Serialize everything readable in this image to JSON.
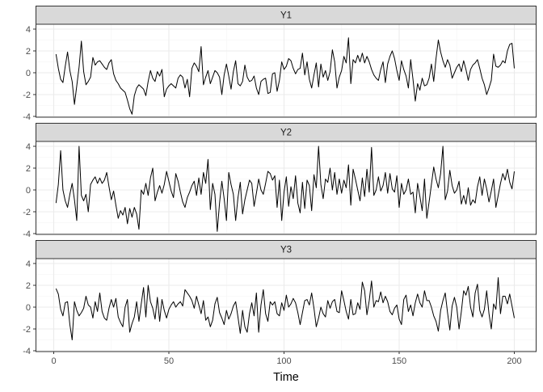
{
  "chart_data": {
    "type": "line",
    "facet_layout": "stacked vertically, shared x axis",
    "xlabel": "Time",
    "ylabel": "",
    "xlim": [
      1,
      200
    ],
    "ylim": [
      -4,
      4
    ],
    "x_ticks": [
      "0",
      "50",
      "100",
      "150",
      "200"
    ],
    "y_ticks": [
      "-4",
      "-2",
      "0",
      "2",
      "4"
    ],
    "grid": true,
    "line_color": "#000000",
    "strip_fill": "#d9d9d9",
    "x_start": 1,
    "series": [
      {
        "name": "Y1",
        "values": [
          1.7,
          0.4,
          -0.6,
          -0.9,
          0.6,
          1.9,
          0.2,
          -0.8,
          -2.9,
          -1.2,
          0.5,
          2.9,
          0.1,
          -1.1,
          -0.8,
          -0.4,
          1.4,
          0.7,
          1.0,
          1.1,
          0.8,
          0.5,
          0.3,
          0.9,
          1.2,
          -0.1,
          -0.7,
          -1.0,
          -1.4,
          -1.6,
          -1.8,
          -2.5,
          -3.3,
          -3.8,
          -2.1,
          -1.4,
          -1.1,
          -1.3,
          -1.5,
          -2.1,
          -0.8,
          0.2,
          -0.5,
          -0.8,
          0.1,
          -0.3,
          0.3,
          -2.2,
          -1.5,
          -1.2,
          -1.0,
          -1.2,
          -1.4,
          -0.5,
          -0.2,
          -0.4,
          -1.4,
          -0.6,
          -2.2,
          0.4,
          0.9,
          0.6,
          0.1,
          2.4,
          -1.1,
          -0.4,
          0.2,
          -1.0,
          -0.4,
          0.2,
          0.0,
          -0.4,
          -2.0,
          -0.2,
          0.8,
          -0.3,
          -1.5,
          0.1,
          1.1,
          -1.0,
          -1.2,
          -0.8,
          0.7,
          -0.4,
          -0.8,
          -0.7,
          -0.3,
          -1.4,
          -2.0,
          -0.8,
          -0.6,
          -0.5,
          -1.9,
          -1.8,
          -0.1,
          0.0,
          -1.7,
          -0.7,
          1.0,
          0.3,
          0.6,
          1.3,
          1.1,
          0.4,
          -0.1,
          0.3,
          0.4,
          1.8,
          -0.2,
          1.0,
          -0.6,
          -1.4,
          -0.2,
          0.9,
          -1.3,
          0.8,
          -0.4,
          0.2,
          -0.7,
          0.1,
          2.1,
          1.0,
          -1.4,
          -0.4,
          0.2,
          1.5,
          0.9,
          3.2,
          -1.0,
          1.2,
          0.9,
          1.6,
          1.0,
          1.8,
          0.9,
          1.5,
          1.0,
          0.3,
          -0.2,
          -0.5,
          -0.7,
          0.3,
          1.0,
          -0.9,
          0.8,
          1.5,
          2.0,
          1.3,
          0.2,
          -0.7,
          1.1,
          0.3,
          -0.3,
          -1.4,
          1.2,
          -0.6,
          -2.6,
          -1.0,
          -1.6,
          -0.5,
          -1.2,
          -1.1,
          -0.5,
          0.8,
          -0.8,
          1.3,
          3.0,
          1.9,
          1.1,
          0.5,
          1.2,
          0.7,
          -0.5,
          0.0,
          0.5,
          0.8,
          0.1,
          1.1,
          0.3,
          -0.7,
          0.3,
          0.7,
          0.9,
          1.2,
          0.4,
          -0.5,
          -1.1,
          -2.0,
          -1.4,
          -0.7,
          1.7,
          0.6,
          0.5,
          0.7,
          1.1,
          0.9,
          2.0,
          2.6,
          2.7,
          0.4
        ]
      },
      {
        "name": "Y2",
        "values": [
          -1.2,
          0.5,
          3.6,
          0.0,
          -1.0,
          -1.6,
          -0.4,
          0.6,
          -0.9,
          -2.8,
          4.0,
          -0.5,
          -1.0,
          -0.4,
          -2.0,
          0.5,
          0.9,
          1.2,
          0.6,
          1.1,
          0.6,
          0.9,
          1.6,
          0.3,
          -0.9,
          -0.1,
          -1.4,
          -2.6,
          -1.9,
          -2.3,
          -1.6,
          -3.1,
          -1.7,
          -2.5,
          -1.6,
          -2.2,
          -3.6,
          0.0,
          -0.4,
          0.6,
          -0.5,
          1.1,
          2.0,
          -1.0,
          -0.2,
          0.4,
          -0.3,
          0.5,
          1.7,
          0.8,
          -0.1,
          -0.7,
          1.5,
          0.8,
          -0.2,
          -1.1,
          -1.6,
          -0.7,
          -0.2,
          0.4,
          0.8,
          -0.5,
          1.1,
          -0.4,
          1.6,
          0.6,
          2.8,
          -1.8,
          0.6,
          -0.4,
          -3.8,
          -1.2,
          0.8,
          -0.8,
          -2.8,
          1.6,
          0.5,
          -0.4,
          -2.8,
          -0.7,
          0.7,
          -2.2,
          -0.9,
          0.0,
          0.9,
          0.6,
          -1.5,
          -0.3,
          1.0,
          0.0,
          -0.4,
          0.6,
          1.7,
          1.5,
          0.9,
          1.3,
          -1.6,
          0.9,
          -2.8,
          -0.2,
          1.2,
          -1.5,
          0.3,
          -0.8,
          1.3,
          -1.2,
          -2.1,
          0.7,
          -1.7,
          0.9,
          0.4,
          -1.9,
          1.4,
          0.2,
          4.0,
          0.5,
          -0.8,
          1.0,
          0.7,
          2.0,
          0.0,
          1.6,
          -0.4,
          1.0,
          -0.3,
          0.9,
          0.2,
          2.3,
          -1.4,
          1.9,
          1.0,
          0.0,
          -1.0,
          1.1,
          -0.6,
          1.9,
          -0.2,
          3.9,
          -0.5,
          0.0,
          1.2,
          -0.1,
          0.4,
          1.6,
          -0.3,
          1.5,
          0.1,
          -0.2,
          1.3,
          -1.6,
          0.6,
          -0.4,
          0.0,
          1.0,
          -0.4,
          -0.2,
          -2.1,
          0.6,
          -0.6,
          -1.9,
          1.0,
          -2.6,
          -1.1,
          0.5,
          2.1,
          1.0,
          0.2,
          1.5,
          4.0,
          -0.9,
          -0.1,
          1.8,
          0.4,
          -0.3,
          0.0,
          0.8,
          -1.3,
          -0.5,
          -1.3,
          0.2,
          -1.4,
          -0.9,
          -1.2,
          0.3,
          1.2,
          -0.5,
          1.0,
          0.1,
          -1.1,
          -0.1,
          1.0,
          -1.6,
          -0.5,
          0.6,
          1.5,
          0.9,
          1.9,
          0.7,
          0.1,
          1.7
        ]
      },
      {
        "name": "Y3",
        "values": [
          1.7,
          1.2,
          -0.2,
          -0.8,
          0.4,
          0.5,
          -1.6,
          -3.0,
          0.5,
          -0.3,
          -0.8,
          -0.5,
          -0.1,
          1.0,
          0.2,
          0.0,
          -1.0,
          0.5,
          -0.4,
          1.3,
          -0.4,
          -1.0,
          -1.2,
          -0.1,
          0.7,
          0.0,
          0.8,
          -0.9,
          -1.4,
          -1.8,
          0.0,
          0.7,
          -2.3,
          -1.5,
          -0.9,
          0.5,
          -1.3,
          0.3,
          1.8,
          -0.9,
          2.0,
          0.5,
          -0.1,
          -1.1,
          0.9,
          -1.3,
          0.7,
          -0.3,
          -1.0,
          -0.2,
          0.2,
          0.5,
          0.0,
          0.3,
          0.5,
          0.1,
          1.6,
          1.3,
          1.0,
          0.6,
          -0.1,
          1.0,
          0.2,
          -0.6,
          0.6,
          -1.2,
          -0.9,
          -1.8,
          -1.2,
          0.3,
          0.9,
          -0.5,
          -1.0,
          -1.6,
          -0.3,
          -1.1,
          -0.6,
          0.1,
          0.5,
          -0.9,
          -2.4,
          -0.3,
          -1.8,
          -2.3,
          -0.6,
          0.4,
          -0.8,
          1.3,
          -2.3,
          0.2,
          1.6,
          -0.6,
          -1.3,
          0.5,
          0.2,
          0.5,
          -0.6,
          -0.8,
          0.4,
          -0.3,
          1.1,
          0.0,
          0.3,
          0.8,
          0.4,
          -0.5,
          -1.6,
          -0.5,
          0.6,
          0.7,
          0.2,
          1.3,
          -0.1,
          -1.8,
          -1.0,
          0.0,
          -0.6,
          -0.9,
          0.6,
          -0.1,
          0.5,
          0.7,
          -0.4,
          -0.5,
          1.5,
          0.6,
          -0.4,
          -1.1,
          0.7,
          -0.7,
          -0.6,
          0.4,
          -0.2,
          2.3,
          1.5,
          -0.7,
          0.6,
          2.4,
          0.0,
          0.6,
          0.5,
          1.4,
          0.4,
          1.0,
          0.5,
          -0.4,
          -0.7,
          -0.1,
          0.2,
          -1.1,
          -1.6,
          0.7,
          1.1,
          -0.4,
          0.2,
          -0.8,
          0.4,
          1.2,
          0.4,
          0.0,
          1.5,
          0.6,
          0.6,
          0.0,
          -0.8,
          -1.3,
          -2.2,
          -0.3,
          0.6,
          1.3,
          -0.5,
          -2.1,
          0.1,
          0.9,
          0.0,
          -2.0,
          -0.4,
          1.5,
          1.1,
          1.9,
          0.0,
          -0.9,
          1.3,
          2.1,
          -0.3,
          -0.9,
          -0.2,
          1.5,
          -0.6,
          -2.0,
          0.3,
          -0.2,
          2.7,
          -0.6,
          1.0,
          1.0,
          0.3,
          1.2,
          0.1,
          -1.0
        ]
      }
    ]
  }
}
